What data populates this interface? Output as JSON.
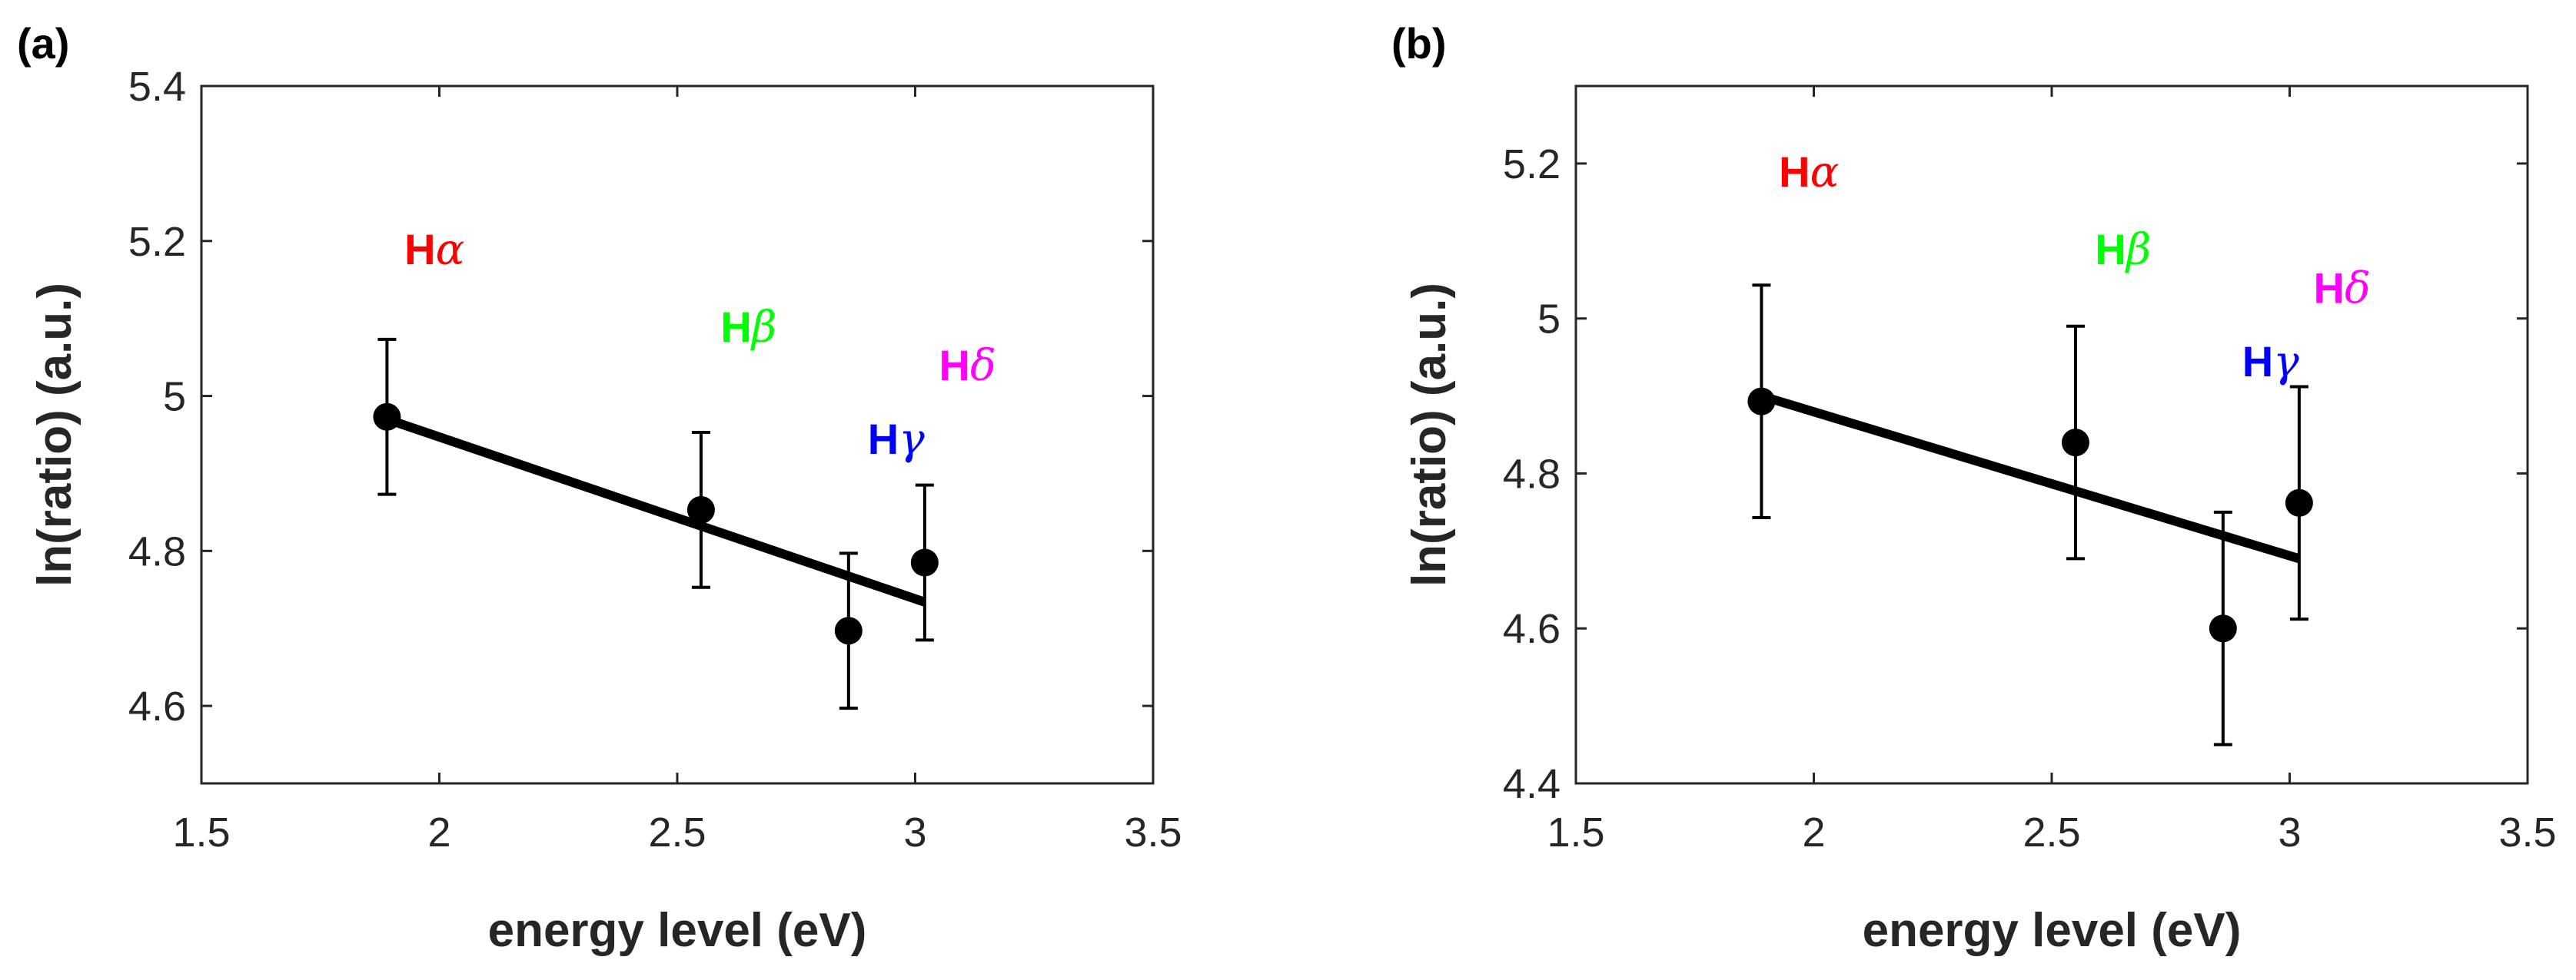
{
  "chart_data": [
    {
      "type": "scatter",
      "panel_label": "(a)",
      "title": "",
      "xlabel": "energy level (eV)",
      "ylabel": "ln(ratio) (a.u.)",
      "xlim": [
        1.5,
        3.5
      ],
      "ylim": [
        4.5,
        5.4
      ],
      "xticks": [
        1.5,
        2,
        2.5,
        3,
        3.5
      ],
      "xtick_labels": [
        "1.5",
        "2",
        "2.5",
        "3",
        "3.5"
      ],
      "yticks": [
        4.6,
        4.8,
        5,
        5.2,
        5.4
      ],
      "ytick_labels": [
        "4.6",
        "4.8",
        "5",
        "5.2",
        "5.4"
      ],
      "grid": false,
      "series": [
        {
          "name": "measured",
          "marker": "filled-circle",
          "color": "#000000",
          "x": [
            1.89,
            2.55,
            2.86,
            3.02
          ],
          "y": [
            4.973,
            4.853,
            4.697,
            4.785
          ],
          "error": [
            0.1,
            0.1,
            0.1,
            0.1
          ]
        },
        {
          "name": "linear fit",
          "type": "line",
          "color": "#000000",
          "x": [
            1.89,
            3.02
          ],
          "y": [
            4.97,
            4.734
          ]
        }
      ],
      "annotations": [
        {
          "prefix": "H",
          "greek": "α",
          "color": "#ff0000",
          "x": 1.99,
          "y": 5.19
        },
        {
          "prefix": "H",
          "greek": "β",
          "color": "#00ff00",
          "x": 2.65,
          "y": 5.09
        },
        {
          "prefix": "H",
          "greek": "γ",
          "color": "#0000ff",
          "x": 2.96,
          "y": 4.945
        },
        {
          "prefix": "H",
          "greek": "δ",
          "color": "#ff00ff",
          "x": 3.11,
          "y": 5.04
        }
      ]
    },
    {
      "type": "scatter",
      "panel_label": "(b)",
      "title": "",
      "xlabel": "energy level (eV)",
      "ylabel": "ln(ratio) (a.u.)",
      "xlim": [
        1.5,
        3.5
      ],
      "ylim": [
        4.4,
        5.3
      ],
      "xticks": [
        1.5,
        2,
        2.5,
        3,
        3.5
      ],
      "xtick_labels": [
        "1.5",
        "2",
        "2.5",
        "3",
        "3.5"
      ],
      "yticks": [
        4.4,
        4.6,
        4.8,
        5,
        5.2
      ],
      "ytick_labels": [
        "4.4",
        "4.6",
        "4.8",
        "5",
        "5.2"
      ],
      "grid": false,
      "series": [
        {
          "name": "measured",
          "marker": "filled-circle",
          "color": "#000000",
          "x": [
            1.89,
            2.55,
            2.86,
            3.02
          ],
          "y": [
            4.893,
            4.84,
            4.6,
            4.762
          ],
          "error": [
            0.15,
            0.15,
            0.15,
            0.15
          ]
        },
        {
          "name": "linear fit",
          "type": "line",
          "color": "#000000",
          "x": [
            1.89,
            3.02
          ],
          "y": [
            4.9,
            4.69
          ]
        }
      ],
      "annotations": [
        {
          "prefix": "H",
          "greek": "α",
          "color": "#ff0000",
          "x": 1.99,
          "y": 5.19
        },
        {
          "prefix": "H",
          "greek": "β",
          "color": "#00ff00",
          "x": 2.65,
          "y": 5.09
        },
        {
          "prefix": "H",
          "greek": "γ",
          "color": "#0000ff",
          "x": 2.96,
          "y": 4.945
        },
        {
          "prefix": "H",
          "greek": "δ",
          "color": "#ff00ff",
          "x": 3.11,
          "y": 5.04
        }
      ]
    }
  ]
}
